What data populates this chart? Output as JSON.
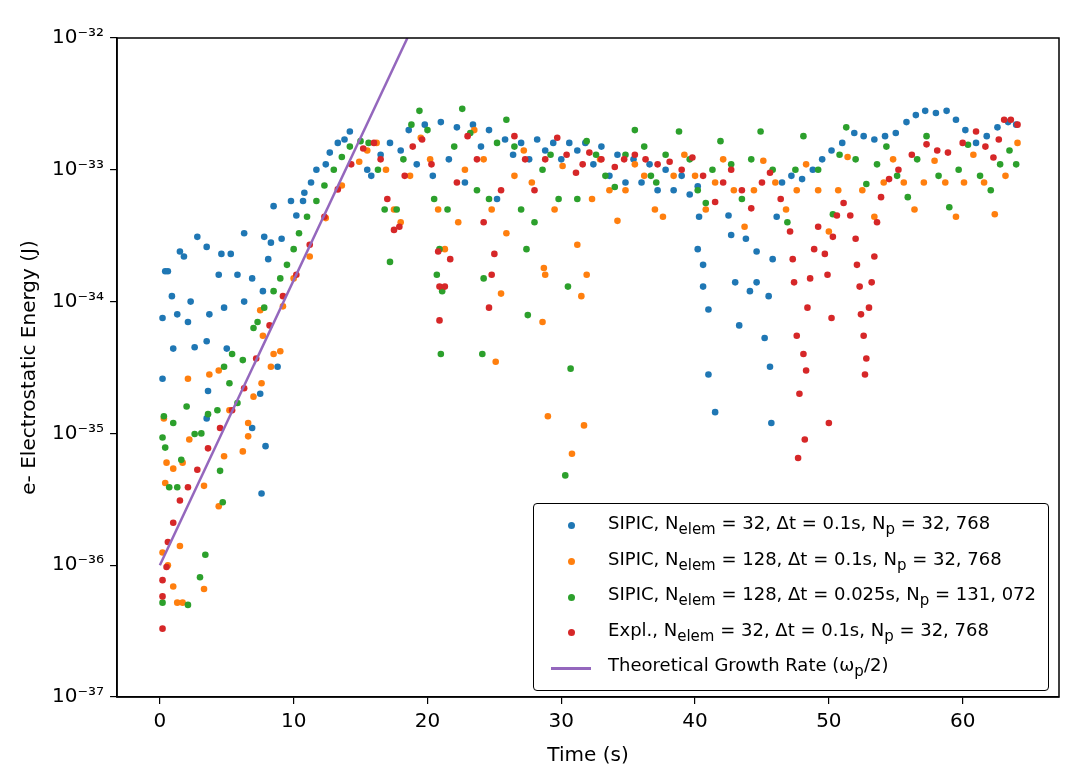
{
  "chart_data": {
    "type": "scatter",
    "xlabel": "Time (s)",
    "ylabel": "e- Electrostatic Energy (J)",
    "log": "y",
    "marker": "circle",
    "legend": "lower right",
    "xlim": [
      -3.2,
      67.2
    ],
    "xticks": [
      0,
      10,
      20,
      30,
      40,
      50,
      60
    ],
    "ylim": [
      1e-37,
      1e-32
    ],
    "yticks": [
      {
        "value": 1e-37,
        "label": "10⁻³⁷"
      },
      {
        "value": 1e-36,
        "label": "10⁻³⁶"
      },
      {
        "value": 1e-35,
        "label": "10⁻³⁵"
      },
      {
        "value": 1e-34,
        "label": "10⁻³⁴"
      },
      {
        "value": 1e-33,
        "label": "10⁻³³"
      },
      {
        "value": 1e-32,
        "label": "10⁻³²"
      }
    ],
    "series": [
      {
        "name": "SIPIC, N$_{elem}$ = 32, Δt = 0.1s, N$_{p}$ = 32, 768",
        "color": "#1f77b4",
        "x": [
          0.2,
          0.2,
          0.4,
          0.6,
          0.9,
          1.0,
          1.3,
          1.5,
          1.8,
          2.1,
          2.3,
          2.6,
          2.8,
          3.5,
          3.5,
          3.5,
          3.6,
          3.7,
          4.4,
          4.6,
          4.8,
          5.0,
          5.3,
          5.8,
          6.3,
          6.3,
          6.9,
          6.9,
          7.5,
          7.6,
          7.7,
          7.8,
          7.9,
          8.1,
          8.3,
          8.5,
          8.8,
          9.1,
          9.8,
          10.2,
          10.7,
          10.8,
          11.3,
          11.7,
          12.4,
          12.7,
          13.3,
          13.8,
          14.2,
          15.5,
          15.8,
          16.5,
          17.2,
          18,
          18.6,
          19.2,
          19.8,
          20.4,
          21,
          21.6,
          22.2,
          22.8,
          23.4,
          24,
          24.6,
          25.2,
          25.8,
          26.4,
          27,
          27.6,
          28.2,
          28.8,
          29.4,
          30,
          30.6,
          31.2,
          31.8,
          32.4,
          33,
          33.6,
          34.2,
          34.8,
          35.4,
          36,
          36.6,
          37.2,
          37.8,
          38.4,
          39,
          39.6,
          40.2,
          40.3,
          40.2,
          40.6,
          40.6,
          41.0,
          41.0,
          41.5,
          42.5,
          42.7,
          43.0,
          43.3,
          43.8,
          44.1,
          44.6,
          44.6,
          45.2,
          45.5,
          45.6,
          45.7,
          45.8,
          46.1,
          46.5,
          47.2,
          48,
          48.8,
          49.5,
          50.2,
          51,
          51.9,
          52.6,
          53.4,
          54.2,
          55,
          55.8,
          56.5,
          57.2,
          58,
          58.8,
          59.5,
          60.2,
          61,
          61.8,
          62.6,
          63.4,
          64
        ],
        "values": [
          2.6e-35,
          7.5e-35,
          1.7e-34,
          1.7e-34,
          1.1e-34,
          4.4e-35,
          8e-35,
          2.4e-34,
          2.2e-34,
          7e-35,
          1e-34,
          4.5e-35,
          3.1e-34,
          2.6e-34,
          5e-35,
          1.3e-35,
          2.1e-35,
          8e-35,
          1.6e-34,
          2.3e-34,
          9e-35,
          4.4e-35,
          2.3e-34,
          1.6e-34,
          3.3e-34,
          1e-34,
          1.5e-34,
          1.1e-35,
          2e-35,
          3.5e-36,
          1.2e-34,
          3.1e-34,
          8e-36,
          2.1e-34,
          2.8e-34,
          5.3e-34,
          3.2e-35,
          3e-34,
          5.8e-34,
          4.5e-34,
          5.8e-34,
          6.7e-34,
          8e-34,
          1e-33,
          1.1e-33,
          1.35e-33,
          1.6e-33,
          1.7e-33,
          1.95e-33,
          1e-33,
          9e-34,
          1.3e-33,
          1.6e-33,
          1.4e-33,
          2e-33,
          1.1e-33,
          2.2e-33,
          9e-34,
          2.3e-33,
          1.2e-33,
          2.1e-33,
          8e-34,
          2.2e-33,
          1.5e-33,
          2e-33,
          6e-34,
          1.7e-33,
          1.3e-33,
          1.6e-33,
          1.2e-33,
          1.7e-33,
          1.4e-33,
          1.6e-33,
          1.2e-33,
          1.6e-33,
          1.4e-33,
          1.6e-33,
          1.1e-33,
          1.5e-33,
          9e-34,
          1.3e-33,
          8e-34,
          1.2e-33,
          8e-34,
          1.1e-33,
          7e-34,
          1e-33,
          7e-34,
          9e-34,
          6.5e-34,
          7.5e-34,
          4.4e-34,
          2.5e-34,
          1.9e-34,
          1.3e-34,
          8.7e-35,
          2.8e-35,
          1.45e-35,
          4.5e-34,
          3.2e-34,
          1.4e-34,
          6.6e-35,
          3e-34,
          1.2e-34,
          2.4e-34,
          1.4e-34,
          5.3e-35,
          1.1e-34,
          3.2e-35,
          1.2e-35,
          2.1e-34,
          4.4e-34,
          8e-34,
          9e-34,
          8.5e-34,
          1e-33,
          1.2e-33,
          1.4e-33,
          1.6e-33,
          1.9e-33,
          1.8e-33,
          1.7e-33,
          1.8e-33,
          1.9e-33,
          2.3e-33,
          2.6e-33,
          2.8e-33,
          2.7e-33,
          2.8e-33,
          2.4e-33,
          2e-33,
          1.6e-33,
          1.8e-33,
          2.1e-33,
          2.3e-33,
          2.2e-33
        ]
      },
      {
        "name": "SIPIC, N$_{elem}$ = 128, Δt = 0.1s, N$_{p}$ = 32, 768",
        "color": "#ff7f0e",
        "x": [
          0.2,
          0.6,
          1.0,
          1.3,
          1.7,
          1.5,
          0.4,
          0.5,
          0.3,
          1.0,
          2.1,
          1.7,
          2.2,
          3.3,
          3.3,
          4.4,
          3.7,
          4.4,
          4.8,
          5.2,
          6.2,
          6.6,
          6.6,
          7.0,
          7.6,
          8.3,
          8.5,
          9.0,
          7.5,
          7.7,
          9.2,
          10.0,
          11.2,
          12.4,
          13.6,
          14.9,
          15.5,
          16.2,
          16.9,
          17.5,
          18.0,
          18.7,
          19.5,
          20.2,
          20.8,
          21.3,
          22.3,
          22.8,
          23.5,
          24.2,
          24.8,
          25.1,
          25.5,
          25.9,
          26.5,
          27.2,
          27.8,
          28.6,
          28.7,
          28.8,
          29.0,
          29.5,
          30.1,
          30.8,
          31.2,
          31.5,
          31.7,
          31.9,
          32.3,
          32.9,
          33.6,
          34.2,
          34.8,
          35.5,
          36.2,
          37.0,
          37.6,
          38.4,
          39.2,
          40.0,
          40.8,
          41.5,
          42.1,
          42.9,
          43.7,
          44.4,
          45.1,
          46.0,
          46.8,
          47.6,
          48.3,
          49.2,
          50.0,
          50.7,
          51.4,
          52.5,
          53.4,
          54.1,
          54.8,
          55.6,
          56.4,
          57.1,
          57.9,
          58.7,
          59.5,
          60.1,
          60.8,
          61.6,
          62.4,
          63.2,
          64.1
        ],
        "values": [
          1.25e-36,
          1e-36,
          6.9e-37,
          5.2e-37,
          5.2e-37,
          1.4e-36,
          4.2e-36,
          6e-36,
          1.3e-35,
          5.4e-36,
          2.6e-35,
          6e-36,
          9e-36,
          4e-36,
          6.6e-37,
          2.8e-36,
          2.8e-35,
          3e-35,
          6.7e-36,
          1.5e-35,
          7.3e-36,
          1.2e-35,
          9.5e-36,
          1.9e-35,
          2.4e-35,
          3.2e-35,
          4e-35,
          4.2e-35,
          8.6e-35,
          5.5e-35,
          9.2e-35,
          1.5e-34,
          2.2e-34,
          4.3e-34,
          7.6e-34,
          1.15e-33,
          1.4e-33,
          1.6e-33,
          1e-33,
          5e-34,
          4e-34,
          9e-34,
          1.75e-33,
          1.2e-33,
          5e-34,
          2.5e-34,
          4e-34,
          1e-33,
          2e-33,
          1.2e-33,
          5e-34,
          3.5e-35,
          1.15e-34,
          3.3e-34,
          9e-34,
          1.4e-33,
          8e-34,
          7e-35,
          1.8e-34,
          1.6e-34,
          1.35e-35,
          5e-34,
          1.07e-33,
          7e-36,
          2.7e-34,
          1.1e-34,
          1.15e-35,
          1.6e-34,
          6e-34,
          1.2e-33,
          7e-34,
          4.1e-34,
          7e-34,
          1.1e-33,
          9e-34,
          5e-34,
          4.4e-34,
          9e-34,
          1.3e-33,
          9e-34,
          5e-34,
          8e-34,
          1.2e-33,
          7e-34,
          3.7e-34,
          7e-34,
          1.17e-33,
          8e-34,
          5e-34,
          7e-34,
          1.1e-33,
          7e-34,
          3.4e-34,
          7e-34,
          1.25e-33,
          7e-34,
          4.4e-34,
          8e-34,
          1.2e-33,
          8e-34,
          5e-34,
          8e-34,
          1.17e-33,
          8e-34,
          4.4e-34,
          8e-34,
          1.3e-33,
          8e-34,
          4.6e-34,
          9e-34,
          1.6e-33
        ]
      },
      {
        "name": "SIPIC, N$_{elem}$ = 128, Δt = 0.025s, N$_{p}$ = 131, 072",
        "color": "#2ca02c",
        "x": [
          0.2,
          0.2,
          0.3,
          0.4,
          0.7,
          1.0,
          1.3,
          1.6,
          2.0,
          2.1,
          2.6,
          3.0,
          3.1,
          3.4,
          3.6,
          4.3,
          4.5,
          4.7,
          4.8,
          5.2,
          5.4,
          5.8,
          6.2,
          7.0,
          7.3,
          7.8,
          8.5,
          9.0,
          9.5,
          10.0,
          10.4,
          11.0,
          11.7,
          12.3,
          13,
          13.6,
          14.2,
          15.0,
          15.6,
          16.3,
          16.8,
          17.2,
          17.7,
          18.2,
          18.8,
          19.4,
          20.0,
          20.5,
          20.7,
          20.9,
          21.0,
          21.1,
          21.5,
          22.0,
          22.6,
          23.2,
          23.7,
          24.1,
          24.2,
          24.6,
          25.2,
          25.9,
          26.5,
          27.0,
          27.4,
          27.5,
          28.0,
          28.6,
          29.2,
          29.8,
          30.3,
          30.5,
          30.7,
          31.2,
          31.9,
          32.6,
          33.3,
          34.0,
          34.8,
          35.5,
          36.2,
          36.7,
          37.1,
          37.8,
          38.8,
          39.6,
          40.2,
          40.8,
          41.3,
          41.9,
          42.7,
          43.5,
          44.2,
          44.9,
          45.8,
          46.9,
          47.5,
          48.1,
          49.2,
          50.3,
          50.8,
          51.3,
          52.0,
          52.8,
          53.6,
          54.3,
          55.1,
          55.9,
          56.6,
          57.3,
          58.2,
          59.0,
          59.7,
          60.4,
          61.3,
          62.1,
          62.8,
          63.5,
          64.0
        ],
        "values": [
          9.3e-36,
          5.2e-37,
          1.35e-35,
          7.8e-36,
          3.9e-36,
          1.2e-35,
          3.9e-36,
          6.3e-36,
          1.6e-35,
          5e-37,
          9.9e-36,
          8.1e-37,
          1e-35,
          1.2e-36,
          1.4e-35,
          1.5e-35,
          5.2e-36,
          3e-36,
          3.2e-35,
          2.4e-35,
          4e-35,
          1.7e-35,
          3.6e-35,
          6.3e-35,
          7e-35,
          9e-35,
          1.2e-34,
          1.5e-34,
          1.9e-34,
          2.5e-34,
          3.3e-34,
          4.4e-34,
          5.8e-34,
          7.6e-34,
          1e-33,
          1.25e-33,
          1.5e-33,
          1.65e-33,
          1.6e-33,
          1e-33,
          5e-34,
          2e-34,
          5e-34,
          1.2e-33,
          2.2e-33,
          2.8e-33,
          2e-33,
          6e-34,
          1.6e-34,
          2.5e-34,
          4e-35,
          1.2e-34,
          5e-34,
          1.5e-33,
          2.9e-33,
          1.9e-33,
          7e-34,
          4e-35,
          1.5e-34,
          6e-34,
          1.6e-33,
          2.4e-33,
          1.5e-33,
          5e-34,
          2.5e-34,
          7.9e-35,
          4e-34,
          1e-33,
          1.3e-33,
          6e-34,
          4.8e-36,
          1.3e-34,
          3.1e-35,
          6e-34,
          1.65e-33,
          1.3e-33,
          9e-34,
          7.4e-34,
          1.3e-33,
          2e-33,
          1.5e-33,
          9e-34,
          8e-34,
          1.3e-33,
          1.95e-33,
          1.2e-33,
          7e-34,
          5.6e-34,
          1e-33,
          1.65e-33,
          1.1e-33,
          6e-34,
          1.2e-33,
          1.95e-33,
          1e-33,
          4e-34,
          1e-33,
          1.8e-33,
          1e-33,
          4.6e-34,
          1.3e-33,
          2.1e-33,
          1.2e-33,
          7.8e-34,
          1.1e-33,
          1.5e-33,
          9e-34,
          6.2e-34,
          1.2e-33,
          1.8e-33,
          9e-34,
          5.2e-34,
          1e-33,
          1.55e-33,
          9e-34,
          7e-34,
          1.1e-33,
          1.4e-33,
          1.1e-33
        ]
      },
      {
        "name": "Expl., N$_{elem}$ = 32, Δt = 0.1s, N$_{p}$ = 32, 768",
        "color": "#d62728",
        "x": [
          0.2,
          0.2,
          0.2,
          0.5,
          0.6,
          1.0,
          1.5,
          2.1,
          2.8,
          3.6,
          4.5,
          5.4,
          6.3,
          7.2,
          8.2,
          9.2,
          10.2,
          11.2,
          12.3,
          13.3,
          14.3,
          15.2,
          16.0,
          16.5,
          17.0,
          17.5,
          17.9,
          18.3,
          18.9,
          19.6,
          20.3,
          20.8,
          20.9,
          20.9,
          21.3,
          21.7,
          22.2,
          23.0,
          23.7,
          24.2,
          24.6,
          24.8,
          25.0,
          25.5,
          26.5,
          27.3,
          28.0,
          28.8,
          29.7,
          30.4,
          31.1,
          31.6,
          32.1,
          33.0,
          34.0,
          34.7,
          35.5,
          36.3,
          37.2,
          38.1,
          39.0,
          39.8,
          40.6,
          41.5,
          42.1,
          42.7,
          43.5,
          44.2,
          45.0,
          45.6,
          46.4,
          47.1,
          47.3,
          47.4,
          47.6,
          47.7,
          47.8,
          48.1,
          48.2,
          48.3,
          48.4,
          48.6,
          48.9,
          49.2,
          49.7,
          49.9,
          50.0,
          50.2,
          50.3,
          50.6,
          51.1,
          51.6,
          52.0,
          52.1,
          52.3,
          52.4,
          52.6,
          52.7,
          52.8,
          53.0,
          53.2,
          53.4,
          53.6,
          53.9,
          54.5,
          55.2,
          56.2,
          57.3,
          58.1,
          58.9,
          60.0,
          61.0,
          61.7,
          62.3,
          62.7,
          63.1,
          63.6,
          64.1
        ],
        "values": [
          3.3e-37,
          5.8e-37,
          7.7e-37,
          9.7e-37,
          1.5e-36,
          2.1e-36,
          3.1e-36,
          3.9e-36,
          5.3e-36,
          7.7e-36,
          1.1e-35,
          1.5e-35,
          2.2e-35,
          3.7e-35,
          6.6e-35,
          1.1e-34,
          1.6e-34,
          2.7e-34,
          4.4e-34,
          7.1e-34,
          1.1e-33,
          1.45e-33,
          1.6e-33,
          1.2e-33,
          6e-34,
          3.5e-34,
          3.7e-34,
          9e-34,
          1.5e-33,
          1.7e-33,
          1.1e-33,
          2.4e-34,
          7.2e-35,
          1.3e-34,
          1.3e-34,
          2.1e-34,
          8e-34,
          1.8e-33,
          1.2e-33,
          4e-34,
          9e-35,
          1.6e-34,
          2.3e-34,
          7e-34,
          1.8e-33,
          1.2e-33,
          7e-34,
          1.2e-33,
          1.75e-33,
          1.3e-33,
          9.5e-34,
          1.1e-33,
          1.35e-33,
          1.2e-33,
          1.05e-33,
          1.2e-33,
          1.3e-33,
          1.2e-33,
          1.1e-33,
          1.15e-33,
          1e-33,
          1.24e-33,
          9e-34,
          5.7e-34,
          8e-34,
          1e-33,
          7e-34,
          5.1e-34,
          8e-34,
          9.5e-34,
          6e-34,
          3.4e-34,
          2.1e-34,
          1.4e-34,
          5.5e-35,
          6.5e-36,
          2e-35,
          4e-35,
          9e-36,
          3e-35,
          9e-35,
          1.5e-34,
          2.5e-34,
          3.7e-34,
          2.3e-34,
          1.6e-34,
          1.2e-35,
          7.5e-35,
          3.1e-34,
          4.5e-34,
          5.6e-34,
          4.5e-34,
          3e-34,
          1.9e-34,
          1.3e-34,
          8e-35,
          5.5e-35,
          2.8e-35,
          3.7e-35,
          9e-35,
          1.4e-34,
          2.2e-34,
          4e-34,
          6.2e-34,
          8.5e-34,
          1e-33,
          1.3e-33,
          1.56e-33,
          1.4e-33,
          1.35e-33,
          1.6e-33,
          1.95e-33,
          1.5e-33,
          1.24e-33,
          1.7e-33,
          2.4e-33,
          2.4e-33,
          2.2e-33
        ]
      },
      {
        "name": "Theoretical Growth Rate (ω$_{p}$/2)",
        "color": "#9467bd",
        "type": "line",
        "marker": "none",
        "line_style": "solid",
        "x": [
          0,
          18.5
        ],
        "values": [
          1e-36,
          1e-32
        ]
      }
    ]
  }
}
